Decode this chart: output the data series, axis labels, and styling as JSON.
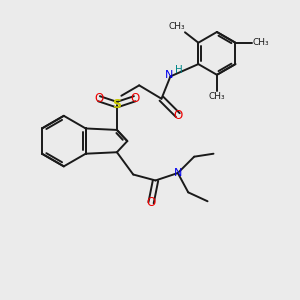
{
  "bg_color": "#ebebeb",
  "bond_color": "#1a1a1a",
  "N_color": "#0000ee",
  "O_color": "#ee0000",
  "S_color": "#cccc00",
  "H_color": "#008888",
  "lw": 1.4,
  "figsize": [
    3.0,
    3.0
  ],
  "dpi": 100,
  "xlim": [
    0,
    10
  ],
  "ylim": [
    0,
    10
  ]
}
